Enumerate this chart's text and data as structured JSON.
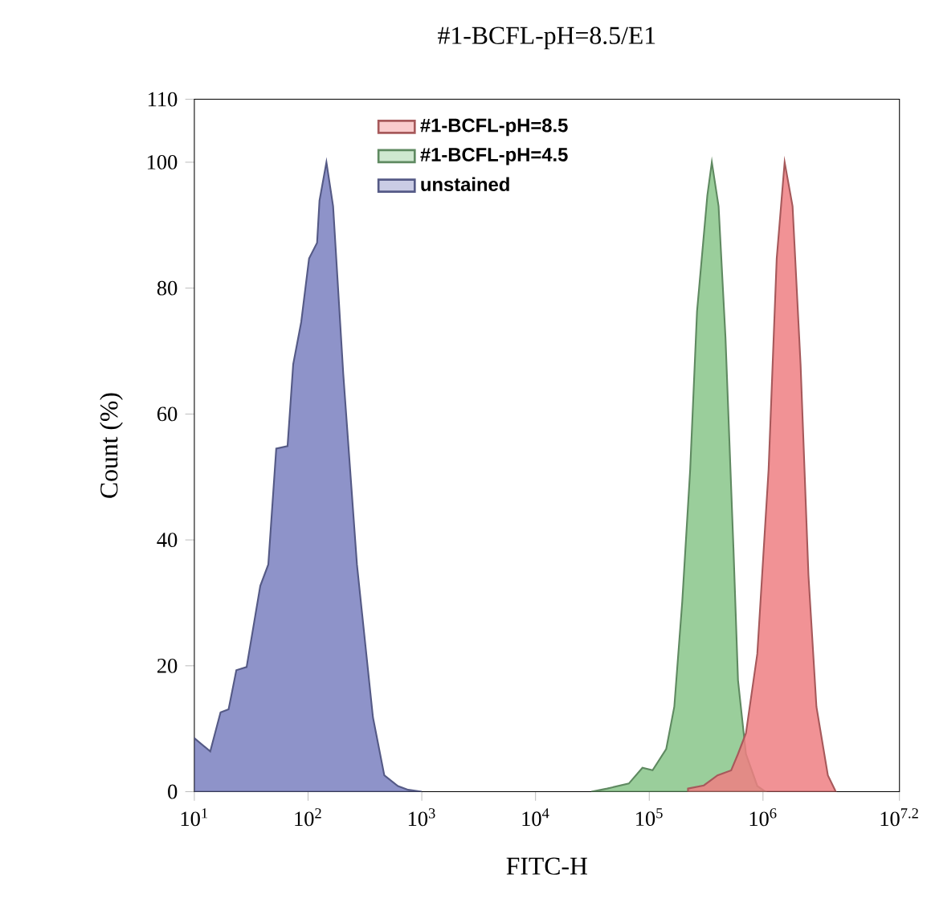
{
  "chart_data": {
    "type": "area",
    "title": "#1-BCFL-pH=8.5/E1",
    "xlabel": "FITC-H",
    "ylabel": "Count (%)",
    "log": "x",
    "legend": "top",
    "xlim": [
      10,
      15848931.9
    ],
    "ylim": [
      0,
      110
    ],
    "xticks": [
      {
        "value": 10,
        "label": "10$^{1}$"
      },
      {
        "value": 100,
        "label": "10$^{2}$"
      },
      {
        "value": 1000,
        "label": "10$^{3}$"
      },
      {
        "value": 10000,
        "label": "10$^{4}$"
      },
      {
        "value": 100000,
        "label": "10$^{5}$"
      },
      {
        "value": 1000000,
        "label": "10$^{6}$"
      },
      {
        "value": 15848931.9,
        "label": "10$^{7.2}$"
      }
    ],
    "yticks": [
      0,
      20,
      40,
      60,
      80,
      100,
      110
    ],
    "series": [
      {
        "name": "#1-BCFL-pH=8.5",
        "color": "#ef7f82",
        "x": [
          219000,
          302000,
          398000,
          525000,
          603000,
          708000,
          891000,
          1120000,
          1320000,
          1550000,
          1820000,
          2140000,
          2510000,
          2950000,
          3720000,
          4370000
        ],
        "values": [
          0.5,
          1,
          2.6,
          3.4,
          6,
          9.3,
          21.9,
          51.2,
          84.7,
          100,
          93,
          67.9,
          34.4,
          13.5,
          2.6,
          0
        ]
      },
      {
        "name": "#1-BCFL-pH=4.5",
        "color": "#88c58a",
        "x": [
          30900,
          42700,
          66100,
          87100,
          107000,
          141000,
          166000,
          195000,
          229000,
          263000,
          324000,
          355000,
          407000,
          468000,
          550000,
          603000,
          708000,
          891000,
          1050000
        ],
        "values": [
          0,
          0.5,
          1.3,
          3.8,
          3.4,
          6.8,
          13.5,
          30.2,
          51.2,
          76.3,
          94.7,
          100,
          93,
          72.1,
          38.6,
          17.7,
          6,
          0.9,
          0
        ]
      },
      {
        "name": "unstained",
        "color": "#7a80bf",
        "x": [
          10,
          13.8,
          17,
          20,
          23.4,
          28.8,
          38,
          44.7,
          52.5,
          66,
          74,
          87,
          102,
          120,
          126,
          145,
          166,
          204,
          269,
          372,
          468,
          617,
          759,
          1000
        ],
        "values": [
          8.5,
          6.4,
          12.6,
          13.1,
          19.3,
          19.8,
          32.7,
          36.1,
          54.5,
          54.9,
          67.9,
          74.6,
          84.7,
          87.2,
          93.9,
          100,
          93,
          66.3,
          36.1,
          11.8,
          2.6,
          0.9,
          0.3,
          0
        ]
      }
    ]
  }
}
